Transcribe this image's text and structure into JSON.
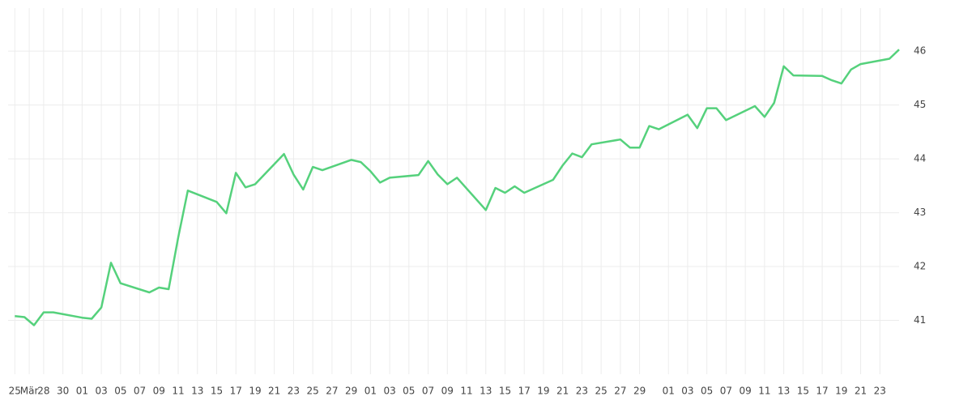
{
  "chart_data": {
    "type": "line",
    "color": "#55d17c",
    "grid": true,
    "x": [
      0,
      1,
      2,
      3,
      4,
      7,
      8,
      9,
      10,
      11,
      14,
      15,
      16,
      17,
      18,
      21,
      22,
      23,
      24,
      25,
      28,
      29,
      30,
      31,
      32,
      35,
      36,
      37,
      38,
      39,
      42,
      43,
      44,
      45,
      46,
      49,
      50,
      51,
      52,
      53,
      56,
      57,
      58,
      59,
      60,
      63,
      64,
      65,
      66,
      67,
      70,
      71,
      72,
      73,
      74,
      77,
      78,
      79,
      80,
      81,
      84,
      85,
      86,
      87,
      88,
      91,
      92
    ],
    "values": [
      41.08,
      41.06,
      40.91,
      41.15,
      41.15,
      41.05,
      41.03,
      41.24,
      42.07,
      41.69,
      41.52,
      41.61,
      41.58,
      42.54,
      43.41,
      43.2,
      42.99,
      43.74,
      43.47,
      43.53,
      44.09,
      43.71,
      43.43,
      43.85,
      43.79,
      43.98,
      43.94,
      43.77,
      43.56,
      43.65,
      43.7,
      43.96,
      43.71,
      43.53,
      43.65,
      43.05,
      43.46,
      43.37,
      43.49,
      43.37,
      43.61,
      43.88,
      44.1,
      44.03,
      44.27,
      44.36,
      44.21,
      44.21,
      44.61,
      44.55,
      44.82,
      44.57,
      44.94,
      44.94,
      44.72,
      44.98,
      44.78,
      45.04,
      45.72,
      45.55,
      45.54,
      45.46,
      45.4,
      45.66,
      45.76,
      45.86,
      46.03
    ],
    "xlim": [
      -0.7,
      92.0
    ],
    "xticks": [
      {
        "value": 0,
        "label": "25"
      },
      {
        "value": 1.5,
        "label": "Mär"
      },
      {
        "value": 3,
        "label": "28"
      },
      {
        "value": 5,
        "label": "30"
      },
      {
        "value": 7,
        "label": "01"
      },
      {
        "value": 9,
        "label": "03"
      },
      {
        "value": 11,
        "label": "05"
      },
      {
        "value": 13,
        "label": "07"
      },
      {
        "value": 15,
        "label": "09"
      },
      {
        "value": 17,
        "label": "11"
      },
      {
        "value": 19,
        "label": "13"
      },
      {
        "value": 21,
        "label": "15"
      },
      {
        "value": 23,
        "label": "17"
      },
      {
        "value": 25,
        "label": "19"
      },
      {
        "value": 27,
        "label": "21"
      },
      {
        "value": 29,
        "label": "23"
      },
      {
        "value": 31,
        "label": "25"
      },
      {
        "value": 33,
        "label": "27"
      },
      {
        "value": 35,
        "label": "29"
      },
      {
        "value": 37,
        "label": "01"
      },
      {
        "value": 39,
        "label": "03"
      },
      {
        "value": 41,
        "label": "05"
      },
      {
        "value": 43,
        "label": "07"
      },
      {
        "value": 45,
        "label": "09"
      },
      {
        "value": 47,
        "label": "11"
      },
      {
        "value": 49,
        "label": "13"
      },
      {
        "value": 51,
        "label": "15"
      },
      {
        "value": 53,
        "label": "17"
      },
      {
        "value": 55,
        "label": "19"
      },
      {
        "value": 57,
        "label": "21"
      },
      {
        "value": 59,
        "label": "23"
      },
      {
        "value": 61,
        "label": "25"
      },
      {
        "value": 63,
        "label": "27"
      },
      {
        "value": 65,
        "label": "29"
      },
      {
        "value": 68,
        "label": "01"
      },
      {
        "value": 70,
        "label": "03"
      },
      {
        "value": 72,
        "label": "05"
      },
      {
        "value": 74,
        "label": "07"
      },
      {
        "value": 76,
        "label": "09"
      },
      {
        "value": 78,
        "label": "11"
      },
      {
        "value": 80,
        "label": "13"
      },
      {
        "value": 82,
        "label": "15"
      },
      {
        "value": 84,
        "label": "17"
      },
      {
        "value": 86,
        "label": "19"
      },
      {
        "value": 88,
        "label": "21"
      },
      {
        "value": 90,
        "label": "23"
      }
    ],
    "ylim": [
      40.0,
      46.8
    ],
    "yticks": [
      41,
      42,
      43,
      44,
      45,
      46
    ]
  }
}
